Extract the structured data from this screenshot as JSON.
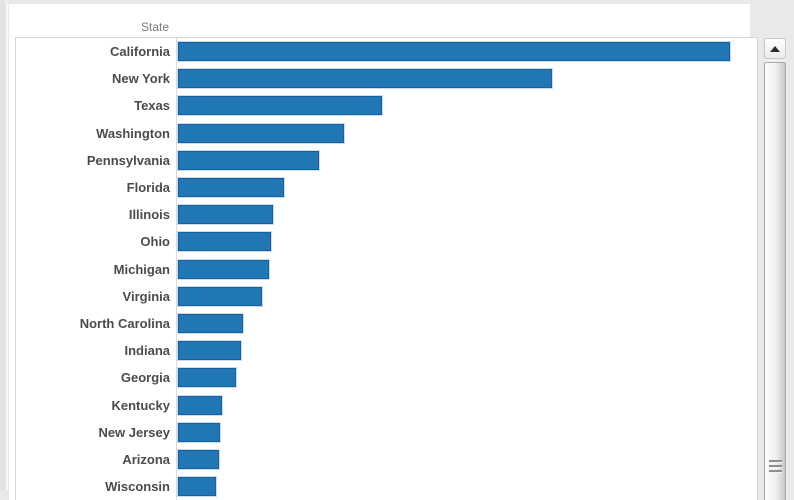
{
  "header": {
    "column_label": "State"
  },
  "chart_data": {
    "type": "bar",
    "orientation": "horizontal",
    "title": "",
    "xlabel": "",
    "ylabel": "State",
    "categories": [
      "California",
      "New York",
      "Texas",
      "Washington",
      "Pennsylvania",
      "Florida",
      "Illinois",
      "Ohio",
      "Michigan",
      "Virginia",
      "North Carolina",
      "Indiana",
      "Georgia",
      "Kentucky",
      "New Jersey",
      "Arizona",
      "Wisconsin"
    ],
    "values": [
      552,
      374,
      204,
      166,
      141,
      106,
      95,
      93,
      91,
      84,
      65,
      63,
      58,
      44,
      42,
      41,
      38
    ],
    "units": "bar length in screen pixels (no value axis or data labels visible in the screenshot)",
    "sort": "descending",
    "grid": false,
    "legend": false,
    "bar_color": "#2177b4",
    "bar_border_color": "#19619b",
    "label_color": "#4b4b4b",
    "header_color": "#7a7a7a",
    "scroll_state": "scrolled to top; more rows continue below Wisconsin"
  }
}
